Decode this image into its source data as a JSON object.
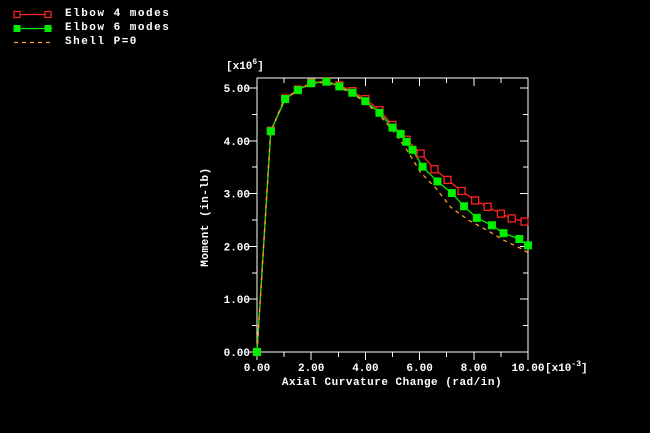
{
  "page": {
    "background": "#000000",
    "bottom_border_color": "#ffffff"
  },
  "chart_data": {
    "type": "line",
    "title": "",
    "xlabel": "Axial Curvature Change (rad/in)",
    "ylabel": "Moment (in-lb)",
    "x_multiplier": {
      "prefix": "[x10",
      "exponent": "-3",
      "suffix": "]"
    },
    "y_multiplier": {
      "prefix": "[x10",
      "exponent": "6",
      "suffix": "]"
    },
    "xlim": [
      0,
      10
    ],
    "ylim": [
      0,
      5.19
    ],
    "x_ticks": {
      "labels": [
        "0.00",
        "2.00",
        "4.00",
        "6.00",
        "8.00",
        "10.00"
      ],
      "values": [
        0,
        2,
        4,
        6,
        8,
        10
      ],
      "minor_step": 1
    },
    "y_ticks": {
      "labels": [
        "0.00",
        "1.00",
        "2.00",
        "3.00",
        "4.00",
        "5.00"
      ],
      "values": [
        0,
        1,
        2,
        3,
        4,
        5
      ],
      "minor_step": 0.5
    },
    "grid": false,
    "legend_position": "top-left-outside",
    "axis_color": "#ffffff",
    "text_color": "#ffffff",
    "series": [
      {
        "name": "Elbow 4 modes",
        "color": "#ff2222",
        "marker": "open-square",
        "dashed": false,
        "points": [
          [
            0,
            0
          ],
          [
            0.51,
            4.19
          ],
          [
            1.04,
            4.8
          ],
          [
            1.51,
            4.97
          ],
          [
            2.0,
            5.1
          ],
          [
            2.56,
            5.13
          ],
          [
            3.04,
            5.05
          ],
          [
            3.52,
            4.94
          ],
          [
            4.0,
            4.79
          ],
          [
            4.52,
            4.58
          ],
          [
            5.0,
            4.3
          ],
          [
            5.52,
            4.02
          ],
          [
            6.04,
            3.76
          ],
          [
            6.55,
            3.46
          ],
          [
            7.03,
            3.26
          ],
          [
            7.55,
            3.05
          ],
          [
            8.05,
            2.87
          ],
          [
            8.51,
            2.75
          ],
          [
            9.0,
            2.62
          ],
          [
            9.4,
            2.53
          ],
          [
            9.87,
            2.47
          ]
        ]
      },
      {
        "name": "Elbow 6 modes",
        "color": "#00ee00",
        "marker": "filled-square",
        "dashed": false,
        "points": [
          [
            0,
            0
          ],
          [
            0.51,
            4.18
          ],
          [
            1.04,
            4.79
          ],
          [
            1.51,
            4.96
          ],
          [
            2.0,
            5.09
          ],
          [
            2.56,
            5.12
          ],
          [
            3.04,
            5.03
          ],
          [
            3.52,
            4.91
          ],
          [
            4.0,
            4.75
          ],
          [
            4.52,
            4.53
          ],
          [
            5.0,
            4.25
          ],
          [
            5.3,
            4.13
          ],
          [
            5.52,
            3.98
          ],
          [
            5.74,
            3.83
          ],
          [
            6.11,
            3.51
          ],
          [
            6.66,
            3.23
          ],
          [
            7.19,
            3.01
          ],
          [
            7.64,
            2.76
          ],
          [
            8.11,
            2.54
          ],
          [
            8.67,
            2.4
          ],
          [
            9.1,
            2.25
          ],
          [
            9.68,
            2.14
          ],
          [
            10.0,
            2.02
          ]
        ]
      },
      {
        "name": "Shell P=0",
        "color": "#ff9933",
        "marker": "none",
        "dashed": true,
        "points": [
          [
            0,
            0
          ],
          [
            0.5,
            4.17
          ],
          [
            1.0,
            4.78
          ],
          [
            1.5,
            4.95
          ],
          [
            2.0,
            5.08
          ],
          [
            2.5,
            5.11
          ],
          [
            3.0,
            5.02
          ],
          [
            3.5,
            4.9
          ],
          [
            4.0,
            4.73
          ],
          [
            4.5,
            4.5
          ],
          [
            5.0,
            4.2
          ],
          [
            5.5,
            3.85
          ],
          [
            6.04,
            3.4
          ],
          [
            6.6,
            3.1
          ],
          [
            7.15,
            2.74
          ],
          [
            7.8,
            2.5
          ],
          [
            8.51,
            2.3
          ],
          [
            9.1,
            2.12
          ],
          [
            9.74,
            1.96
          ],
          [
            10.0,
            1.88
          ]
        ]
      }
    ]
  }
}
